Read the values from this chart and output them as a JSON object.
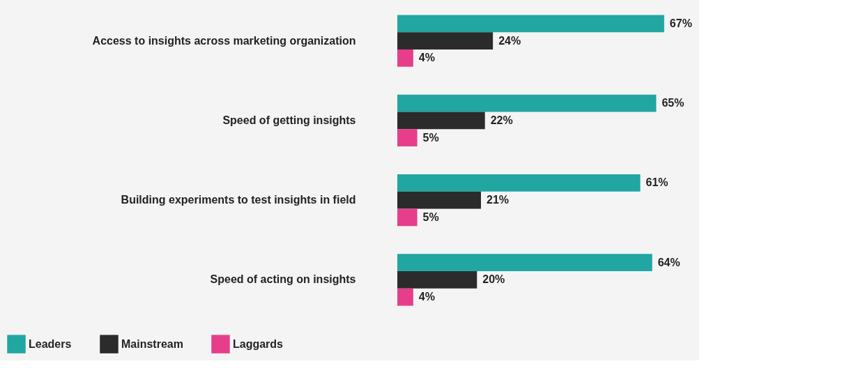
{
  "chart_data": {
    "type": "bar",
    "orientation": "horizontal",
    "categories": [
      "Access to insights across marketing organization",
      "Speed of getting insights",
      "Building experiments to test insights in field",
      "Speed of acting on insights"
    ],
    "series": [
      {
        "name": "Leaders",
        "color": "#21a6a2",
        "values": [
          67,
          65,
          61,
          64
        ],
        "value_labels": [
          "67%",
          "65%",
          "61%",
          "64%"
        ]
      },
      {
        "name": "Mainstream",
        "color": "#2b2b2b",
        "values": [
          24,
          22,
          21,
          20
        ],
        "value_labels": [
          "24%",
          "22%",
          "21%",
          "20%"
        ]
      },
      {
        "name": "Laggards",
        "color": "#e63e8b",
        "values": [
          4,
          5,
          5,
          4
        ],
        "value_labels": [
          "4%",
          "5%",
          "5%",
          "4%"
        ]
      }
    ],
    "legend": "bottom left",
    "grid": false
  }
}
